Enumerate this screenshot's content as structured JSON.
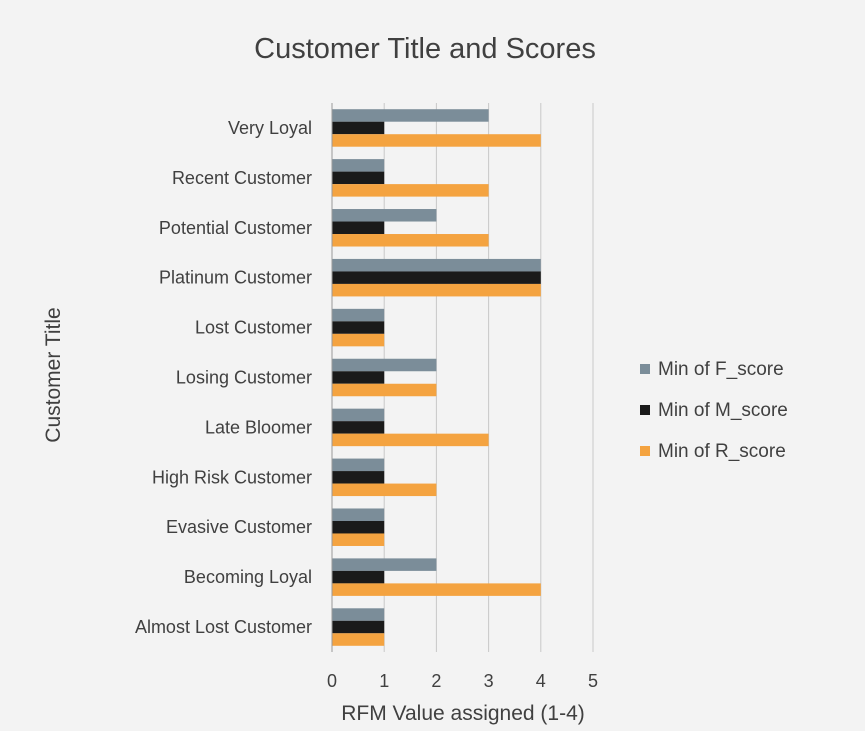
{
  "chart_data": {
    "type": "bar",
    "orientation": "horizontal",
    "title": "Customer Title and Scores",
    "xlabel": "RFM Value assigned (1-4)",
    "ylabel": "Customer Title",
    "xlim": [
      0,
      5
    ],
    "xticks": [
      "0",
      "1",
      "2",
      "3",
      "4",
      "5"
    ],
    "grid": true,
    "legend_position": "right",
    "categories": [
      "Very Loyal",
      "Recent Customer",
      "Potential Customer",
      "Platinum Customer",
      "Lost Customer",
      "Losing Customer",
      "Late Bloomer",
      "High Risk Customer",
      "Evasive Customer",
      "Becoming Loyal",
      "Almost Lost Customer"
    ],
    "series": [
      {
        "name": "Min of F_score",
        "color": "#7b8d99",
        "values": [
          3,
          1,
          2,
          4,
          1,
          2,
          1,
          1,
          1,
          2,
          1
        ]
      },
      {
        "name": "Min of M_score",
        "color": "#1a1a1a",
        "values": [
          1,
          1,
          1,
          4,
          1,
          1,
          1,
          1,
          1,
          1,
          1
        ]
      },
      {
        "name": "Min of R_score",
        "color": "#f4a340",
        "values": [
          4,
          3,
          3,
          4,
          1,
          2,
          3,
          2,
          1,
          4,
          1
        ]
      }
    ]
  }
}
